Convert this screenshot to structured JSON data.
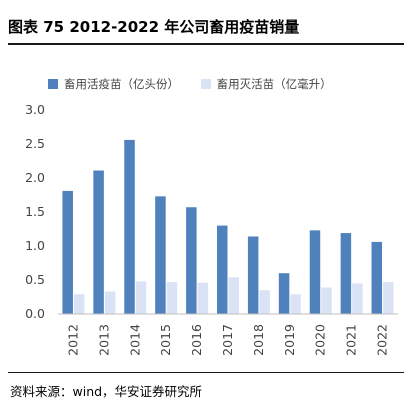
{
  "figure": {
    "title": "图表 75 2012-2022 年公司畜用疫苗销量",
    "source": "资料来源：wind，华安证券研究所"
  },
  "colors": {
    "series1": "#4f81bd",
    "series2": "#dae3f5",
    "axis": "#bfbfbf",
    "text": "#444444"
  },
  "chart_data": {
    "type": "bar",
    "categories": [
      "2012",
      "2013",
      "2014",
      "2015",
      "2016",
      "2017",
      "2018",
      "2019",
      "2020",
      "2021",
      "2022"
    ],
    "series": [
      {
        "name": "畜用活疫苗（亿头份）",
        "values": [
          1.81,
          2.11,
          2.56,
          1.73,
          1.57,
          1.3,
          1.14,
          0.6,
          1.23,
          1.19,
          1.06
        ]
      },
      {
        "name": "畜用灭活苗（亿毫升）",
        "values": [
          0.29,
          0.33,
          0.48,
          0.47,
          0.46,
          0.54,
          0.35,
          0.29,
          0.39,
          0.45,
          0.47
        ]
      }
    ],
    "ylim": [
      0,
      3.0
    ],
    "yticks": [
      "0.0",
      "0.5",
      "1.0",
      "1.5",
      "2.0",
      "2.5",
      "3.0"
    ],
    "xlabel": "",
    "ylabel": "",
    "grid": false,
    "legend_position": "top"
  }
}
